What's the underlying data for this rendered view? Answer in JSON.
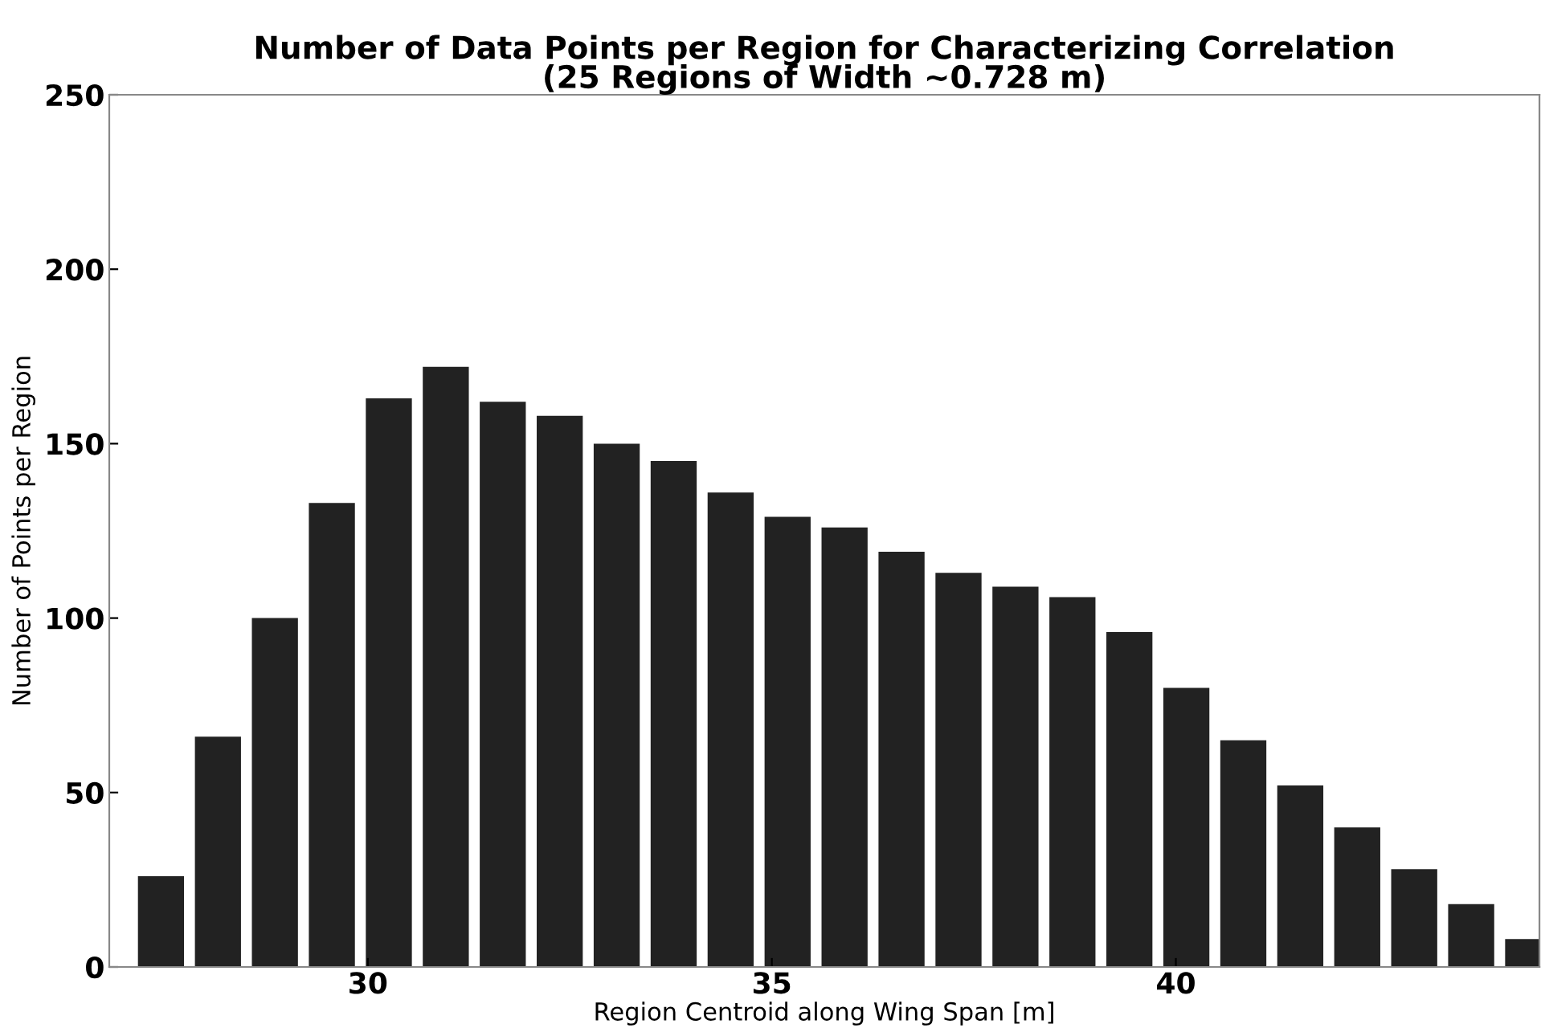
{
  "chart_data": {
    "type": "bar",
    "title": "Number of Data Points per Region for Characterizing Correlation\n(25 Regions of Width ~0.728 m)",
    "xlabel": "Region Centroid along Wing Span [m]",
    "ylabel": "Number of Points per Region",
    "x": [
      27.44,
      28.145,
      28.85,
      29.555,
      30.26,
      30.965,
      31.67,
      32.375,
      33.08,
      33.785,
      34.49,
      35.195,
      35.9,
      36.605,
      37.31,
      38.015,
      38.72,
      39.425,
      40.13,
      40.835,
      41.54,
      42.245,
      42.95,
      43.655,
      44.36
    ],
    "values": [
      26,
      66,
      100,
      133,
      163,
      172,
      162,
      158,
      150,
      145,
      136,
      129,
      126,
      119,
      113,
      109,
      106,
      96,
      80,
      65,
      52,
      40,
      28,
      18,
      8
    ],
    "color": "#222222",
    "xlim": [
      26.8,
      44.5
    ],
    "xticks": [
      30,
      35,
      40
    ],
    "ylim": [
      0,
      250
    ],
    "yticks": [
      0,
      50,
      100,
      150,
      200,
      250
    ],
    "grid": false
  }
}
